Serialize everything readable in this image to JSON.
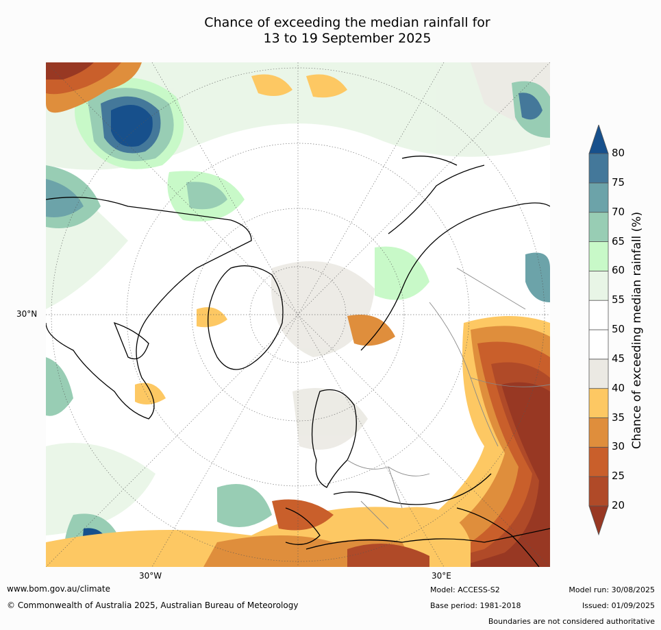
{
  "title": {
    "line1": "Chance of exceeding the median rainfall for",
    "line2": "13 to 19 September 2025"
  },
  "map": {
    "projection": "north polar stereographic",
    "lat_labels": [
      "30°N"
    ],
    "lon_labels": [
      "30°W",
      "30°E"
    ]
  },
  "colorbar": {
    "label": "Chance of exceeding median rainfall (%)",
    "ticks": [
      "20",
      "25",
      "30",
      "35",
      "40",
      "45",
      "50",
      "55",
      "60",
      "65",
      "70",
      "75",
      "80"
    ],
    "colors": [
      "#983823",
      "#b04a28",
      "#c95f2b",
      "#df8e3c",
      "#fdc863",
      "#ebe9e3",
      "#ffffff",
      "#ffffff",
      "#e8f5e6",
      "#c8f9c8",
      "#98cdb4",
      "#6ca3a9",
      "#44789a",
      "#17508c"
    ]
  },
  "footer": {
    "website": "www.bom.gov.au/climate",
    "copyright": "© Commonwealth of Australia 2025, Australian Bureau of Meteorology",
    "model": "Model: ACCESS-S2",
    "base_period": "Base period: 1981-2018",
    "model_run": "Model run: 30/08/2025",
    "issued": "Issued: 01/09/2025",
    "disclaimer": "Boundaries are not considered authoritative"
  }
}
